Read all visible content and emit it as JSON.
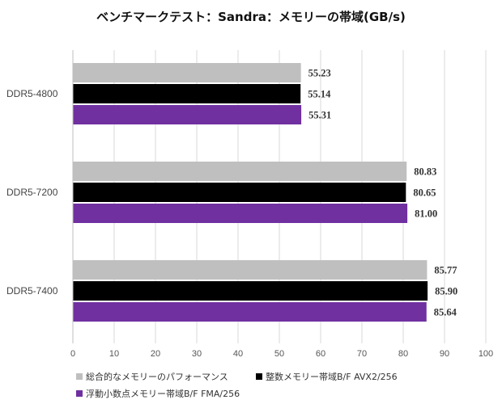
{
  "chart_data": {
    "type": "bar",
    "orientation": "horizontal",
    "title": "ベンチマークテスト：Sandra：メモリーの帯域(GB/s)",
    "categories": [
      "DDR5-4800",
      "DDR5-7200",
      "DDR5-7400"
    ],
    "series": [
      {
        "name": "総合的なメモリーのパフォーマンス",
        "color": "#BFBFBF",
        "values": [
          55.23,
          80.83,
          85.77
        ],
        "labels": [
          "55.23",
          "80.83",
          "85.77"
        ]
      },
      {
        "name": "整数メモリー帯域B/F AVX2/256",
        "color": "#000000",
        "values": [
          55.14,
          80.65,
          85.9
        ],
        "labels": [
          "55.14",
          "80.65",
          "85.90"
        ]
      },
      {
        "name": "浮動小数点メモリー帯域B/F FMA/256",
        "color": "#7030A0",
        "values": [
          55.31,
          81.0,
          85.64
        ],
        "labels": [
          "55.31",
          "81.00",
          "85.64"
        ]
      }
    ],
    "xlim": [
      0,
      100
    ],
    "xticks": [
      "0",
      "10",
      "20",
      "30",
      "40",
      "50",
      "60",
      "70",
      "80",
      "90",
      "100"
    ],
    "grid": "vertical",
    "legend_position": "bottom-left"
  }
}
